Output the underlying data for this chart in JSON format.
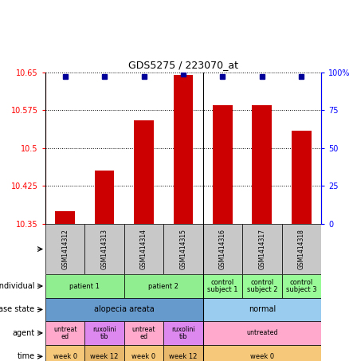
{
  "title": "GDS5275 / 223070_at",
  "samples": [
    "GSM1414312",
    "GSM1414313",
    "GSM1414314",
    "GSM1414315",
    "GSM1414316",
    "GSM1414317",
    "GSM1414318"
  ],
  "red_values": [
    10.375,
    10.455,
    10.555,
    10.645,
    10.585,
    10.585,
    10.535
  ],
  "blue_values": [
    97,
    97,
    97,
    99,
    97,
    97,
    97
  ],
  "ylim_left": [
    10.35,
    10.65
  ],
  "ylim_right": [
    0,
    100
  ],
  "yticks_left": [
    10.35,
    10.425,
    10.5,
    10.575,
    10.65
  ],
  "yticks_right": [
    0,
    25,
    50,
    75,
    100
  ],
  "ytick_labels_left": [
    "10.35",
    "10.425",
    "10.5",
    "10.575",
    "10.65"
  ],
  "ytick_labels_right": [
    "0",
    "25",
    "50",
    "75",
    "100%"
  ],
  "individual_data": [
    {
      "label": "patient 1",
      "span": [
        0,
        2
      ],
      "color": "#90EE90"
    },
    {
      "label": "patient 2",
      "span": [
        2,
        4
      ],
      "color": "#90EE90"
    },
    {
      "label": "control\nsubject 1",
      "span": [
        4,
        5
      ],
      "color": "#98FB98"
    },
    {
      "label": "control\nsubject 2",
      "span": [
        5,
        6
      ],
      "color": "#98FB98"
    },
    {
      "label": "control\nsubject 3",
      "span": [
        6,
        7
      ],
      "color": "#98FB98"
    }
  ],
  "disease_data": [
    {
      "label": "alopecia areata",
      "span": [
        0,
        4
      ],
      "color": "#6699CC"
    },
    {
      "label": "normal",
      "span": [
        4,
        7
      ],
      "color": "#99CCEE"
    }
  ],
  "agent_data": [
    {
      "label": "untreat\ned",
      "span": [
        0,
        1
      ],
      "color": "#FFAACC"
    },
    {
      "label": "ruxolini\ntib",
      "span": [
        1,
        2
      ],
      "color": "#DD88EE"
    },
    {
      "label": "untreat\ned",
      "span": [
        2,
        3
      ],
      "color": "#FFAACC"
    },
    {
      "label": "ruxolini\ntib",
      "span": [
        3,
        4
      ],
      "color": "#DD88EE"
    },
    {
      "label": "untreated",
      "span": [
        4,
        7
      ],
      "color": "#FFAACC"
    }
  ],
  "time_data": [
    {
      "label": "week 0",
      "span": [
        0,
        1
      ],
      "color": "#F5C87A"
    },
    {
      "label": "week 12",
      "span": [
        1,
        2
      ],
      "color": "#E8B86D"
    },
    {
      "label": "week 0",
      "span": [
        2,
        3
      ],
      "color": "#F5C87A"
    },
    {
      "label": "week 12",
      "span": [
        3,
        4
      ],
      "color": "#E8B86D"
    },
    {
      "label": "week 0",
      "span": [
        4,
        7
      ],
      "color": "#F5C87A"
    }
  ],
  "bar_color": "#CC0000",
  "dot_color": "#000099",
  "header_bg": "#C8C8C8",
  "row_label_names": [
    "individual",
    "disease state",
    "agent",
    "time"
  ]
}
